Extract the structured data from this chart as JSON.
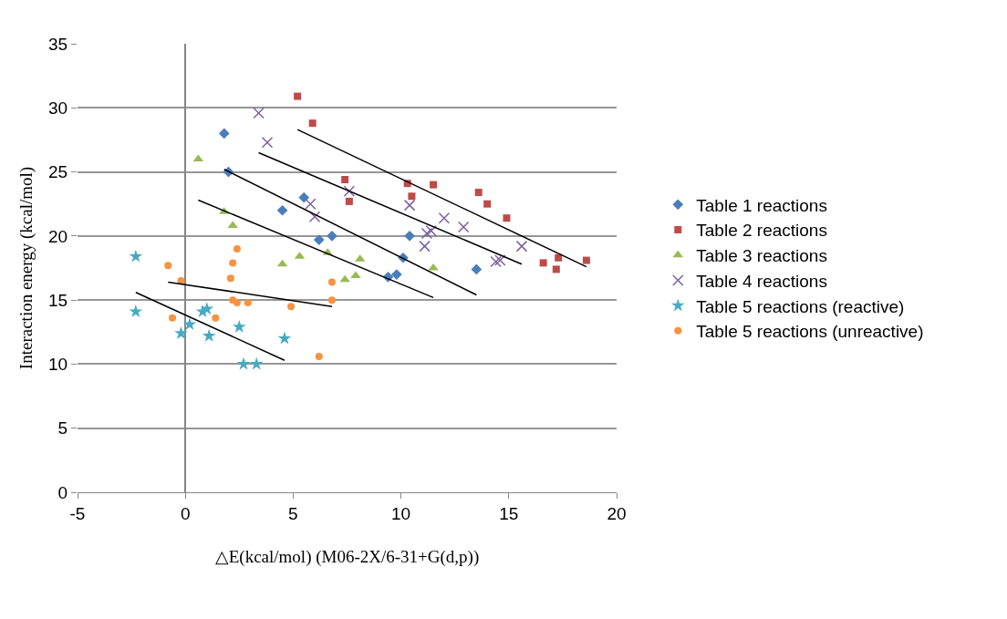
{
  "chart_data": {
    "type": "scatter",
    "xlabel": "△E(kcal/mol) (M06-2X/6-31+G(d,p))",
    "ylabel": "Interaction energy (kcal/mol)",
    "xlim": [
      -5,
      20
    ],
    "xticks": [
      -5,
      0,
      5,
      10,
      15,
      20
    ],
    "ylim": [
      0,
      35
    ],
    "yticks": [
      0,
      5,
      10,
      15,
      20,
      25,
      30,
      35
    ],
    "grid": "y",
    "legend": "right",
    "series": [
      {
        "name": "Table 1 reactions",
        "color": "#4a7ebb",
        "marker": "diamond",
        "x": [
          1.8,
          2.0,
          4.5,
          5.5,
          6.2,
          6.8,
          9.4,
          9.8,
          10.1,
          10.4,
          13.5
        ],
        "values": [
          28,
          25,
          22,
          23,
          19.7,
          20,
          16.8,
          17,
          18.3,
          20,
          17.4
        ]
      },
      {
        "name": "Table 2 reactions",
        "color": "#be4b48",
        "marker": "square",
        "x": [
          5.2,
          5.9,
          7.4,
          7.6,
          10.3,
          10.5,
          11.5,
          13.6,
          14.0,
          14.9,
          16.6,
          17.2,
          17.3,
          18.6
        ],
        "values": [
          30.9,
          28.8,
          24.4,
          22.7,
          24.1,
          23.1,
          24,
          23.4,
          22.5,
          21.4,
          17.9,
          17.4,
          18.3,
          18.1
        ]
      },
      {
        "name": "Table 3 reactions",
        "color": "#98b954",
        "marker": "triangle",
        "x": [
          0.6,
          1.8,
          2.2,
          4.5,
          5.3,
          6.6,
          7.4,
          7.9,
          8.1,
          11.5
        ],
        "values": [
          26,
          21.9,
          20.8,
          17.8,
          18.4,
          18.7,
          16.6,
          16.9,
          18.2,
          17.5
        ]
      },
      {
        "name": "Table 4 reactions",
        "color": "#7d60a0",
        "marker": "cross",
        "x": [
          3.4,
          3.8,
          5.8,
          6.0,
          7.6,
          10.4,
          11.1,
          11.2,
          11.4,
          12.0,
          12.9,
          14.4,
          14.6,
          15.6
        ],
        "values": [
          29.6,
          27.3,
          22.5,
          21.5,
          23.5,
          22.4,
          19.2,
          20.2,
          20.4,
          21.4,
          20.7,
          18.0,
          18.1,
          19.2
        ]
      },
      {
        "name": "Table 5 reactions (reactive)",
        "color": "#46aac5",
        "marker": "star",
        "x": [
          -2.3,
          -2.3,
          -0.2,
          0.2,
          0.8,
          1.0,
          1.1,
          2.5,
          2.7,
          3.3,
          4.6
        ],
        "values": [
          18.4,
          14.1,
          12.4,
          13.1,
          14.1,
          14.3,
          12.2,
          12.9,
          10,
          10,
          12
        ]
      },
      {
        "name": "Table 5 reactions (unreactive)",
        "color": "#f69240",
        "marker": "circle",
        "x": [
          -0.8,
          -0.6,
          -0.2,
          1.4,
          2.1,
          2.2,
          2.2,
          2.4,
          2.4,
          2.9,
          4.9,
          6.2,
          6.8,
          6.8
        ],
        "values": [
          17.7,
          13.6,
          16.5,
          13.6,
          16.7,
          17.9,
          15.0,
          19.0,
          14.8,
          14.8,
          14.5,
          10.6,
          16.4,
          15
        ]
      },
      {
        "type": "line",
        "color": "#000000",
        "marker": "none",
        "x": [
          5.2,
          18.6
        ],
        "values": [
          28.3,
          17.6
        ]
      },
      {
        "type": "line",
        "color": "#000000",
        "marker": "none",
        "x": [
          3.4,
          15.6
        ],
        "values": [
          26.5,
          17.8
        ]
      },
      {
        "type": "line",
        "color": "#000000",
        "marker": "none",
        "x": [
          1.8,
          13.5
        ],
        "values": [
          25.2,
          15.4
        ]
      },
      {
        "type": "line",
        "color": "#000000",
        "marker": "none",
        "x": [
          0.6,
          11.5
        ],
        "values": [
          22.8,
          15.2
        ]
      },
      {
        "type": "line",
        "color": "#000000",
        "marker": "none",
        "x": [
          -0.8,
          6.8
        ],
        "values": [
          16.4,
          14.5
        ]
      },
      {
        "type": "line",
        "color": "#000000",
        "marker": "none",
        "x": [
          -2.3,
          4.6
        ],
        "values": [
          15.6,
          10.3
        ]
      }
    ]
  }
}
